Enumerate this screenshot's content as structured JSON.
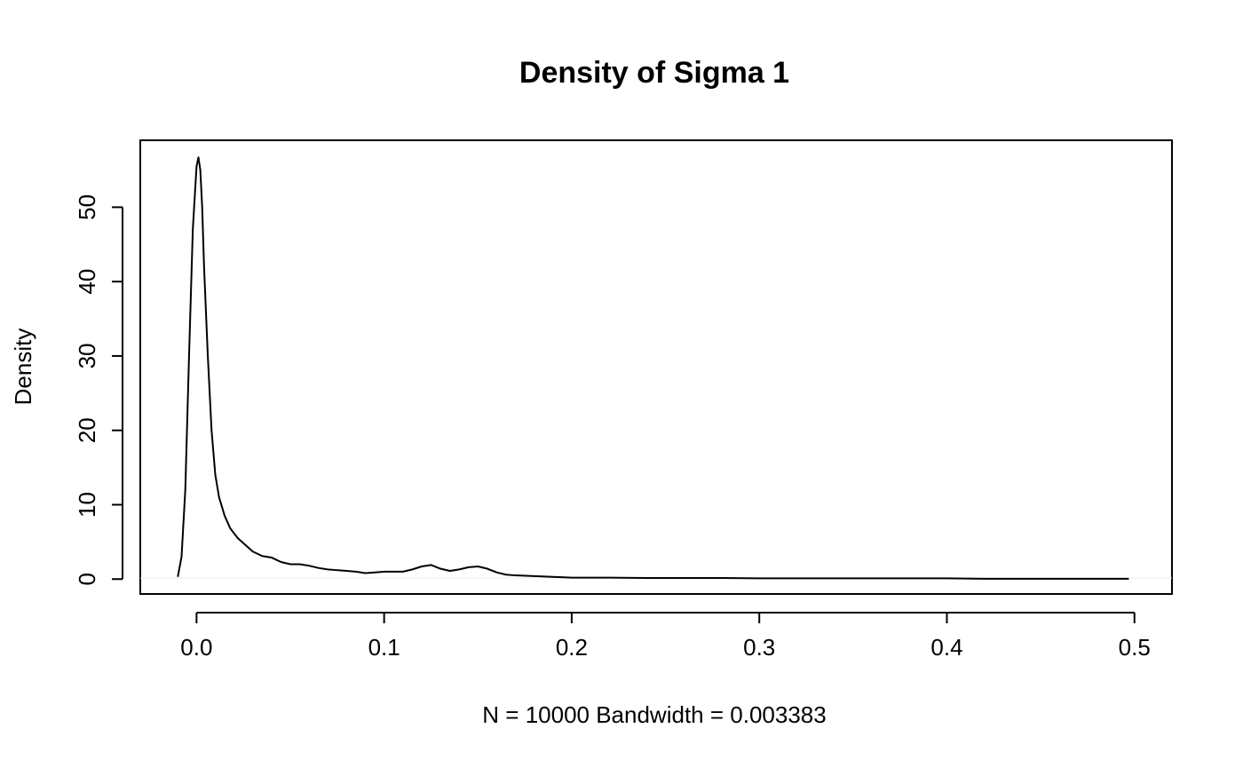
{
  "chart_data": {
    "type": "line",
    "title": "Density of Sigma 1",
    "xlabel": "N = 10000   Bandwidth = 0.003383",
    "ylabel": "Density",
    "xlim": [
      -0.03,
      0.52
    ],
    "ylim": [
      -2,
      59
    ],
    "x_ticks": [
      0.0,
      0.1,
      0.2,
      0.3,
      0.4,
      0.5
    ],
    "x_tick_labels": [
      "0.0",
      "0.1",
      "0.2",
      "0.3",
      "0.4",
      "0.5"
    ],
    "y_ticks": [
      0,
      10,
      20,
      30,
      40,
      50
    ],
    "y_tick_labels": [
      "0",
      "10",
      "20",
      "30",
      "40",
      "50"
    ],
    "grid": false,
    "series": [
      {
        "color": "#000000",
        "x": [
          -0.01,
          -0.008,
          -0.006,
          -0.004,
          -0.002,
          0.0,
          0.001,
          0.002,
          0.003,
          0.004,
          0.006,
          0.008,
          0.01,
          0.012,
          0.015,
          0.018,
          0.022,
          0.026,
          0.03,
          0.035,
          0.04,
          0.045,
          0.05,
          0.055,
          0.06,
          0.065,
          0.07,
          0.075,
          0.08,
          0.085,
          0.09,
          0.095,
          0.1,
          0.105,
          0.11,
          0.115,
          0.12,
          0.125,
          0.13,
          0.135,
          0.14,
          0.145,
          0.15,
          0.155,
          0.16,
          0.165,
          0.17,
          0.18,
          0.19,
          0.2,
          0.22,
          0.24,
          0.26,
          0.28,
          0.3,
          0.32,
          0.34,
          0.36,
          0.38,
          0.4,
          0.42,
          0.44,
          0.46,
          0.48,
          0.497
        ],
        "y": [
          0.3,
          3.0,
          12.0,
          30.0,
          47.0,
          55.5,
          56.7,
          55.0,
          50.0,
          42.0,
          30.0,
          20.0,
          14.0,
          11.0,
          8.5,
          6.8,
          5.5,
          4.6,
          3.7,
          3.1,
          2.9,
          2.3,
          2.0,
          2.0,
          1.8,
          1.5,
          1.3,
          1.2,
          1.1,
          1.0,
          0.8,
          0.9,
          1.0,
          1.0,
          1.0,
          1.3,
          1.7,
          1.9,
          1.4,
          1.1,
          1.3,
          1.6,
          1.7,
          1.4,
          0.9,
          0.6,
          0.5,
          0.4,
          0.3,
          0.2,
          0.2,
          0.15,
          0.15,
          0.15,
          0.1,
          0.1,
          0.1,
          0.1,
          0.1,
          0.1,
          0.05,
          0.05,
          0.05,
          0.05,
          0.05
        ]
      }
    ]
  }
}
